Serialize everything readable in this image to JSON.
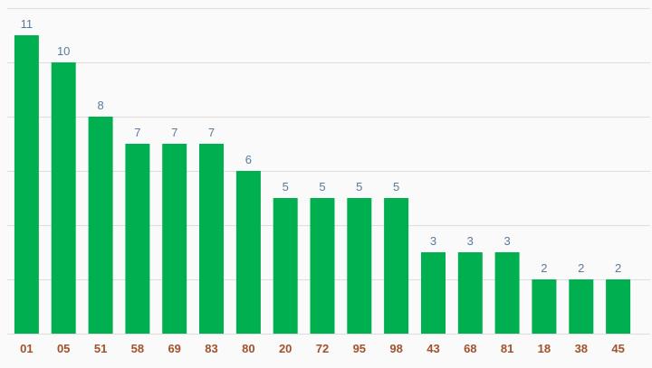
{
  "chart_data": {
    "type": "bar",
    "categories": [
      "01",
      "05",
      "51",
      "58",
      "69",
      "83",
      "80",
      "20",
      "72",
      "95",
      "98",
      "43",
      "68",
      "81",
      "18",
      "38",
      "45"
    ],
    "values": [
      11,
      10,
      8,
      7,
      7,
      7,
      6,
      5,
      5,
      5,
      5,
      3,
      3,
      3,
      2,
      2,
      2
    ],
    "title": "",
    "xlabel": "",
    "ylabel": "",
    "ylim": [
      0,
      12
    ],
    "grid": true,
    "legend": "none",
    "data_labels": true
  },
  "colors": {
    "bar": "#00b050",
    "value_label": "#5b7a99",
    "tick_label": "#a0522d",
    "grid": "#dddddd",
    "background": "#fafafa"
  }
}
